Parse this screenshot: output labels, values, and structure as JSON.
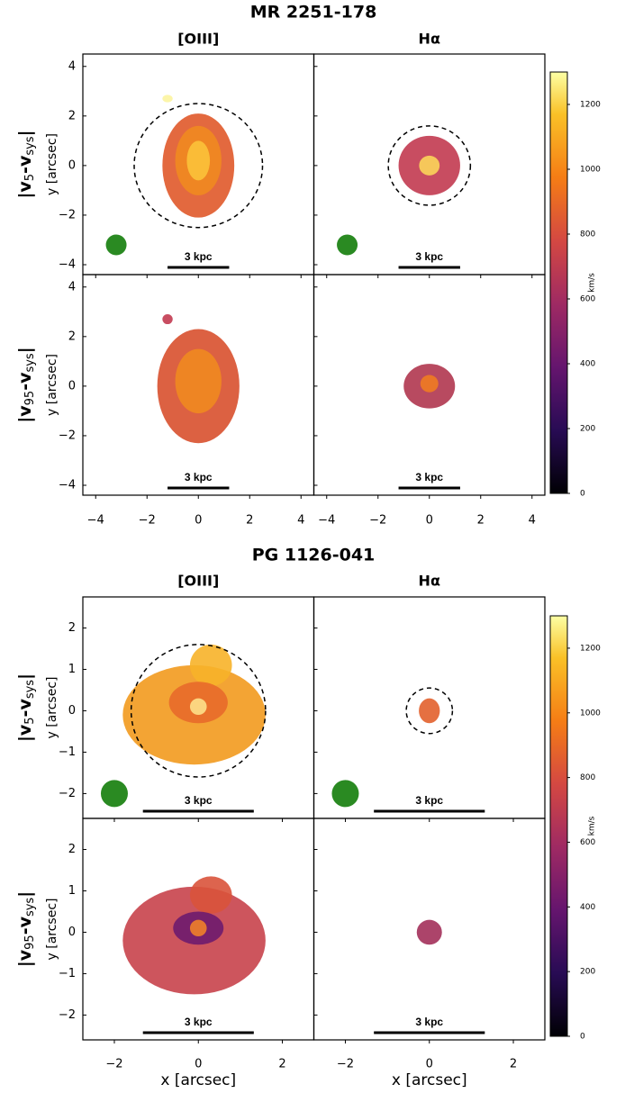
{
  "chart_data": [
    {
      "type": "image-map",
      "title": "MR 2251-178",
      "columns": [
        "[OIII]",
        "Hα"
      ],
      "row_labels": [
        [
          "|v",
          "5",
          "-v",
          "sys",
          "|"
        ],
        [
          "|v",
          "95",
          "-v",
          "sys",
          "|"
        ]
      ],
      "y_label": "y [arcsec]",
      "scale_bar_label": "3 kpc",
      "colorbar_label": "km/s",
      "xlim": [
        -4.5,
        4.5
      ],
      "ylim": [
        -4.4,
        4.5
      ],
      "xticks": [
        {
          "value": -4,
          "label": "−4"
        },
        {
          "value": -2,
          "label": "−2"
        },
        0,
        2,
        4
      ],
      "yticks": [
        {
          "value": -4,
          "label": "−4"
        },
        {
          "value": -2,
          "label": "−2"
        },
        0,
        2,
        4
      ],
      "clim": [
        0,
        1300
      ],
      "cticks": [
        0,
        200,
        400,
        600,
        800,
        1000,
        1200
      ]
    },
    {
      "type": "image-map",
      "title": "PG 1126-041",
      "columns": [
        "[OIII]",
        "Hα"
      ],
      "row_labels": [
        [
          "|v",
          "5",
          "-v",
          "sys",
          "|"
        ],
        [
          "|v",
          "95",
          "-v",
          "sys",
          "|"
        ]
      ],
      "y_label": "y [arcsec]",
      "x_label": "x [arcsec]",
      "scale_bar_label": "3 kpc",
      "colorbar_label": "km/s",
      "xlim": [
        -2.75,
        2.75
      ],
      "ylim": [
        -2.6,
        2.75
      ],
      "xticks": [
        {
          "value": -2,
          "label": "−2"
        },
        0,
        2
      ],
      "yticks": [
        {
          "value": -2,
          "label": "−2"
        },
        {
          "value": -1,
          "label": "−1"
        },
        0,
        1,
        2
      ],
      "clim": [
        0,
        1300
      ],
      "cticks": [
        0,
        200,
        400,
        600,
        800,
        1000,
        1200
      ]
    }
  ]
}
